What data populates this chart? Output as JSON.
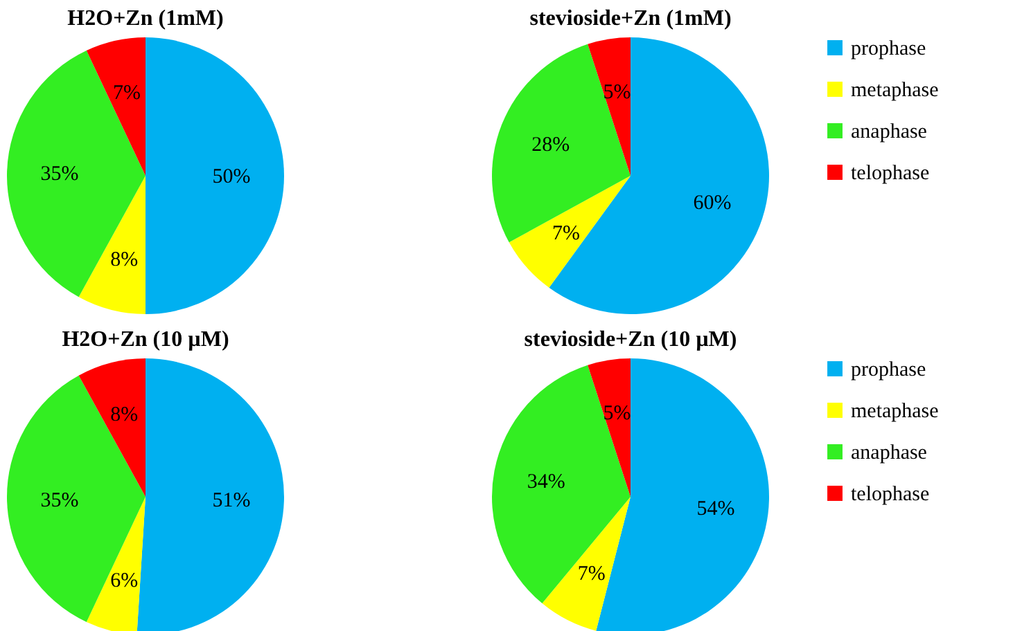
{
  "chart_data": [
    {
      "type": "pie",
      "title": "H2O+Zn (1mM)",
      "categories": [
        null,
        null,
        null,
        null
      ],
      "values": [
        50,
        8,
        35,
        7
      ],
      "value_labels": [
        "50%",
        "8%",
        "35%",
        "7%"
      ],
      "colors": [
        "#00b0f0",
        "#ffff00",
        "#33ee22",
        "#ff0000"
      ],
      "legend": false
    },
    {
      "type": "pie",
      "title": "stevioside+Zn (1mM)",
      "categories": [
        "prophase",
        "metaphase",
        "anaphase",
        "telophase"
      ],
      "values": [
        60,
        7,
        28,
        5
      ],
      "value_labels": [
        "60%",
        "7%",
        "28%",
        "5%"
      ],
      "colors": [
        "#00b0f0",
        "#ffff00",
        "#33ee22",
        "#ff0000"
      ],
      "legend": "right"
    },
    {
      "type": "pie",
      "title": "H2O+Zn (10 µM)",
      "categories": [
        null,
        null,
        null,
        null
      ],
      "values": [
        51,
        6,
        35,
        8
      ],
      "value_labels": [
        "51%",
        "6%",
        "35%",
        "8%"
      ],
      "colors": [
        "#00b0f0",
        "#ffff00",
        "#33ee22",
        "#ff0000"
      ],
      "legend": false
    },
    {
      "type": "pie",
      "title": "stevioside+Zn (10 µM)",
      "categories": [
        "prophase",
        "metaphase",
        "anaphase",
        "telophase"
      ],
      "values": [
        54,
        7,
        34,
        5
      ],
      "value_labels": [
        "54%",
        "7%",
        "34%",
        "5%"
      ],
      "colors": [
        "#00b0f0",
        "#ffff00",
        "#33ee22",
        "#ff0000"
      ],
      "legend": "right"
    }
  ]
}
